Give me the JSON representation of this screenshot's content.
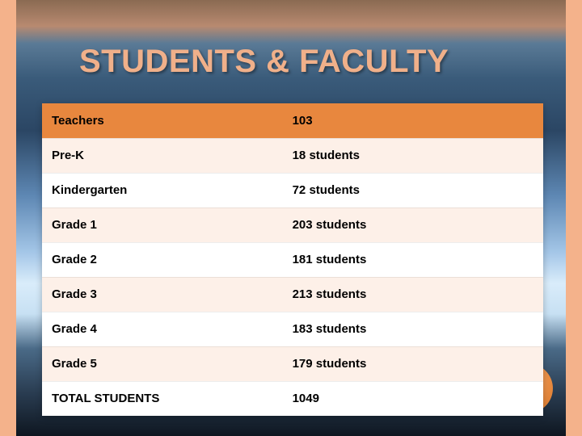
{
  "slide": {
    "title": "STUDENTS & FACULTY",
    "title_color": "#f0b08a",
    "title_fontsize": 40,
    "border_color": "#f4b28b",
    "accent_circle_color": "#e98c42",
    "table": {
      "header_bg": "#e8873e",
      "alt_row_bg": "#fdf0e8",
      "row_bg": "#ffffff",
      "text_color": "#000000",
      "fontsize": 15,
      "col_widths_pct": [
        48,
        52
      ],
      "rows": [
        {
          "label": "Teachers",
          "value": "103",
          "is_header": true
        },
        {
          "label": "Pre-K",
          "value": "18 students",
          "is_header": false
        },
        {
          "label": "Kindergarten",
          "value": "72 students",
          "is_header": false
        },
        {
          "label": "Grade 1",
          "value": "203 students",
          "is_header": false
        },
        {
          "label": "Grade 2",
          "value": "181 students",
          "is_header": false
        },
        {
          "label": "Grade 3",
          "value": "213 students",
          "is_header": false
        },
        {
          "label": "Grade 4",
          "value": "183 students",
          "is_header": false
        },
        {
          "label": "Grade 5",
          "value": "179 students",
          "is_header": false
        },
        {
          "label": "TOTAL STUDENTS",
          "value": "1049",
          "is_header": false
        }
      ]
    }
  }
}
